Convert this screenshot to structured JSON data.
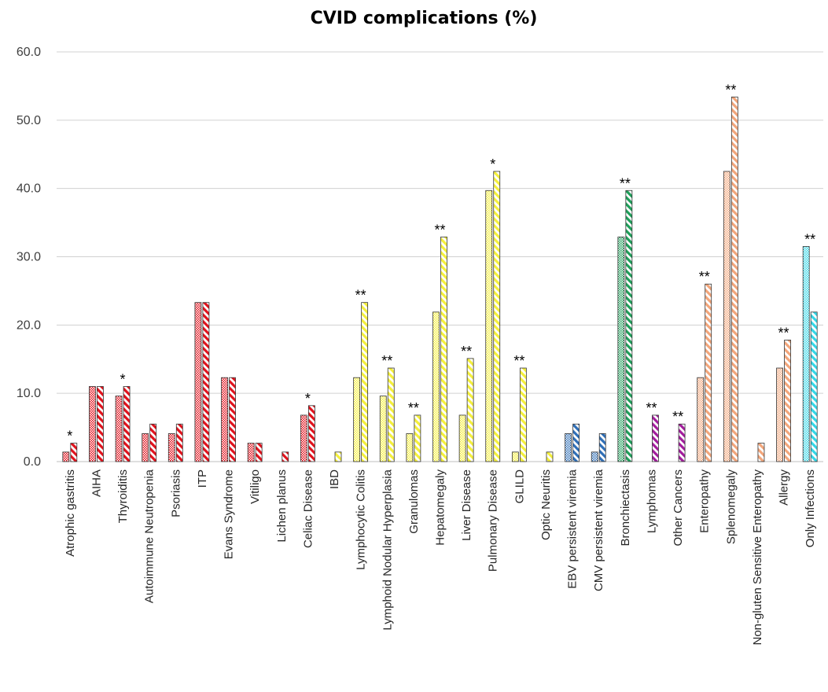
{
  "chart_data": {
    "type": "bar",
    "title": "CVID complications (%)",
    "xlabel": "",
    "ylabel": "",
    "ylim": [
      0,
      60
    ],
    "yticks": [
      "0.0",
      "10.0",
      "20.0",
      "30.0",
      "40.0",
      "50.0",
      "60.0"
    ],
    "grid": true,
    "series_note": "Each category has two bars: left bar dotted fill, right bar diagonal-striped fill",
    "categories": [
      "Atrophic gastritis",
      "AIHA",
      "Thyroiditis",
      "Autoimmune Neutropenia",
      "Psoriasis",
      "ITP",
      "Evans Syndrome",
      "Vitiligo",
      "Lichen planus",
      "Celiac Disease",
      "IBD",
      "Lymphocytic Colitis",
      "Lymphoid Nodular Hyperplasia",
      "Granulomas",
      "Hepatomegaly",
      "Liver Disease",
      "Pulmonary Disease",
      "GLILD",
      "Optic Neuritis",
      "EBV persistent viremia",
      "CMV persistent viremia",
      "Bronchiectasis",
      "Lymphomas",
      "Other Cancers",
      "Enteropathy",
      "Splenomegaly",
      "Non-gluten Sensitive Enteropathy",
      "Allergy",
      "Only Infections"
    ],
    "series": [
      {
        "name": "dotted",
        "values": [
          1.4,
          11.0,
          9.6,
          4.1,
          4.1,
          23.3,
          12.3,
          2.7,
          0,
          6.8,
          0,
          12.3,
          9.6,
          4.1,
          21.9,
          6.8,
          39.7,
          1.4,
          0,
          4.1,
          1.4,
          32.9,
          0,
          0,
          12.3,
          42.5,
          0,
          13.7,
          31.5
        ]
      },
      {
        "name": "striped",
        "values": [
          2.7,
          11.0,
          11.0,
          5.5,
          5.5,
          23.3,
          12.3,
          2.7,
          1.4,
          8.2,
          1.4,
          23.3,
          13.7,
          6.8,
          32.9,
          15.1,
          42.5,
          13.7,
          1.4,
          5.5,
          4.1,
          39.7,
          6.8,
          5.5,
          26.0,
          53.4,
          2.7,
          17.8,
          21.9
        ]
      }
    ],
    "colors": [
      "#e0121c",
      "#e0121c",
      "#e0121c",
      "#e0121c",
      "#e0121c",
      "#e0121c",
      "#e0121c",
      "#e0121c",
      "#e0121c",
      "#e0121c",
      "#f4ef3b",
      "#f4ef3b",
      "#f4ef3b",
      "#f4ef3b",
      "#f4ef3b",
      "#f4ef3b",
      "#f4ef3b",
      "#f4ef3b",
      "#f4ef3b",
      "#2f6fb7",
      "#2f6fb7",
      "#1f9e5a",
      "#a21c9c",
      "#a21c9c",
      "#f2a57a",
      "#f2a57a",
      "#f2a57a",
      "#f2a57a",
      "#33d6e6"
    ],
    "significance": [
      "*",
      "",
      "*",
      "",
      "",
      "",
      "",
      "",
      "",
      "*",
      "",
      "**",
      "**",
      "**",
      "**",
      "**",
      "*",
      "**",
      "",
      "",
      "",
      "**",
      "**",
      "**",
      "**",
      "**",
      "",
      "**",
      "**"
    ]
  }
}
